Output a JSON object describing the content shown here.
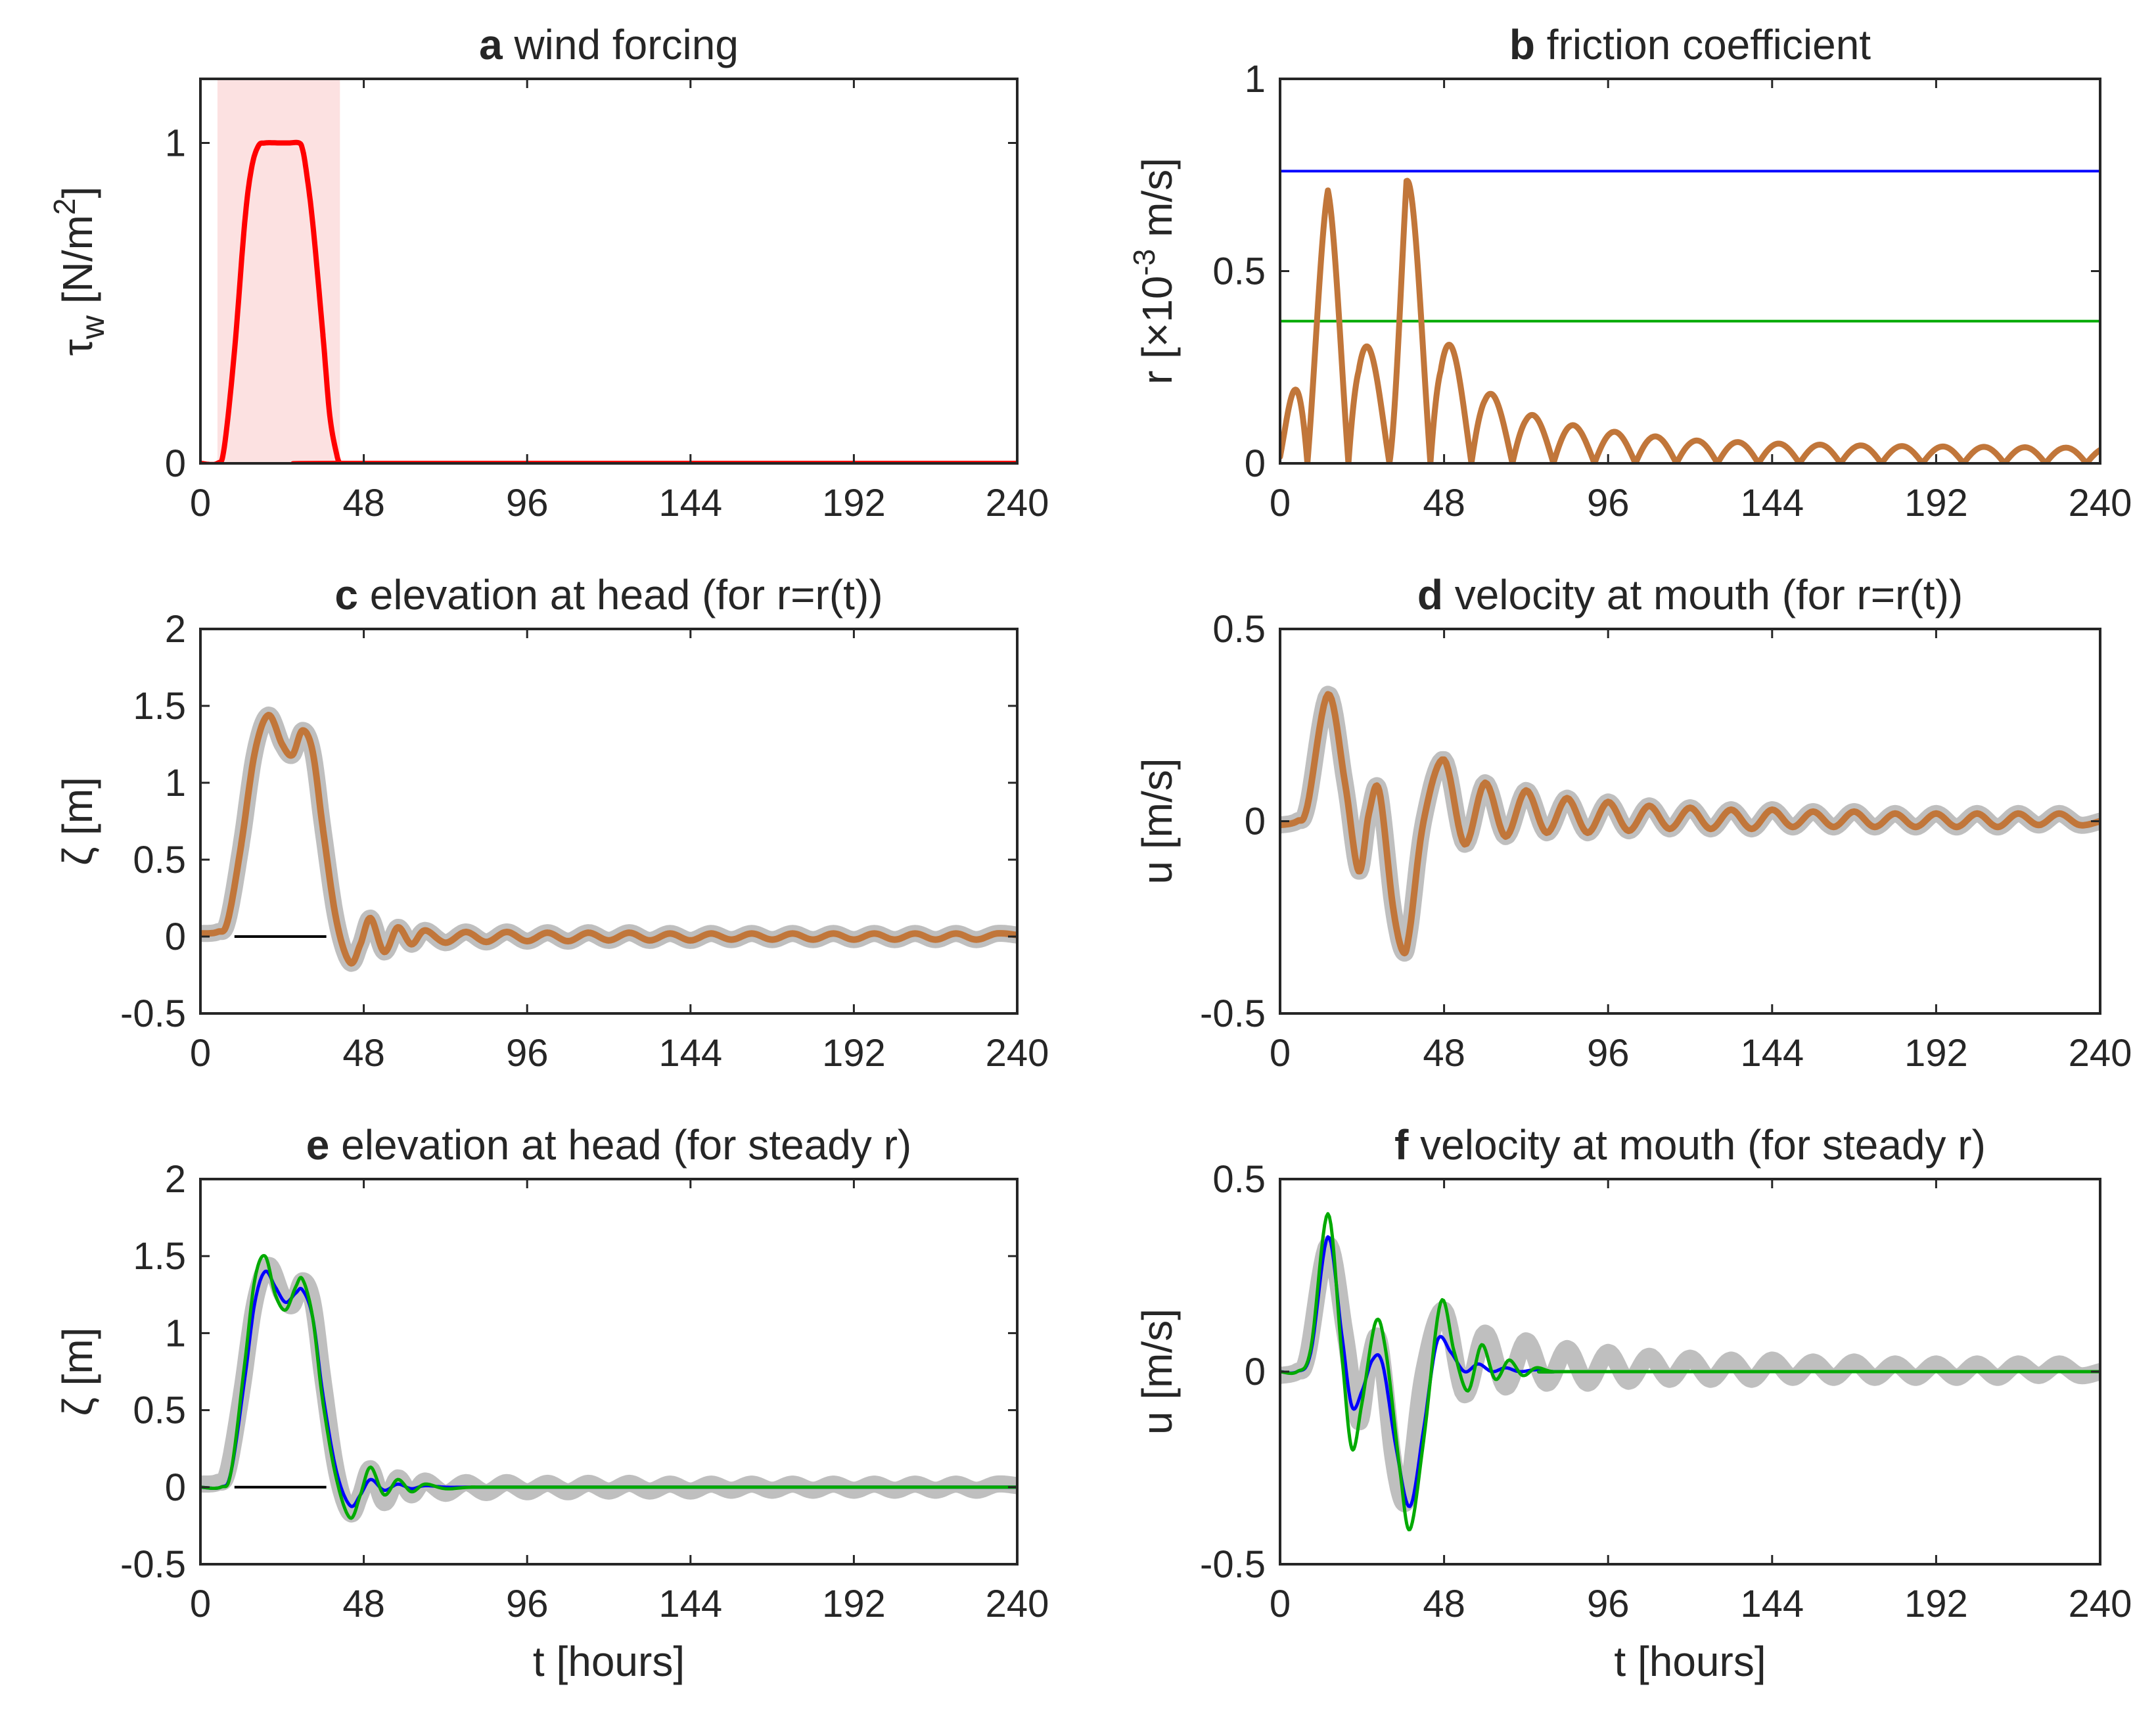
{
  "chart_data": [
    {
      "type": "line",
      "panel_letter": "a",
      "title": "wind forcing",
      "ylabel": "τ_w [N/m^2]",
      "xlabel": "",
      "xlim": [
        0,
        240
      ],
      "ylim": [
        0,
        1.2
      ],
      "xticks": [
        0,
        48,
        96,
        144,
        192,
        240
      ],
      "yticks": [
        0,
        1
      ],
      "shaded_interval": {
        "x": [
          5,
          41
        ],
        "color": "#fce1e1"
      },
      "series": [
        {
          "color": "#ff0000",
          "x": [
            0,
            5,
            7,
            10,
            13,
            15,
            17,
            19,
            23,
            26,
            29,
            30,
            31,
            33,
            36,
            38,
            40,
            41,
            42,
            240
          ],
          "y": [
            0,
            0,
            0.05,
            0.35,
            0.75,
            0.92,
            0.99,
            1.0,
            1.0,
            1.0,
            1.0,
            0.98,
            0.92,
            0.75,
            0.4,
            0.15,
            0.03,
            0,
            0,
            0
          ]
        }
      ]
    },
    {
      "type": "line",
      "panel_letter": "b",
      "title": "friction coefficient",
      "ylabel": "r [×10^-3 m/s]",
      "xlabel": "",
      "xlim": [
        0,
        240
      ],
      "ylim": [
        0,
        1
      ],
      "xticks": [
        0,
        48,
        96,
        144,
        192,
        240
      ],
      "yticks": [
        0,
        0.5,
        1
      ],
      "series": [
        {
          "color": "#0000ff",
          "x": [
            0,
            240
          ],
          "y": [
            0.76,
            0.76
          ]
        },
        {
          "color": "#00aa00",
          "x": [
            0,
            240
          ],
          "y": [
            0.37,
            0.37
          ]
        },
        {
          "color": "#c1763a",
          "type": "rectified_oscillation",
          "period": 12,
          "phase": 2,
          "x_end": 240,
          "peaks": [
            [
              0,
              0.02
            ],
            [
              14,
              0.71
            ],
            [
              23,
              0.34
            ],
            [
              32,
              0.22
            ],
            [
              37,
              0.76
            ],
            [
              47,
              0.34
            ],
            [
              60,
              0.19
            ],
            [
              72,
              0.13
            ],
            [
              90,
              0.09
            ],
            [
              120,
              0.06
            ],
            [
              150,
              0.05
            ],
            [
              180,
              0.045
            ],
            [
              240,
              0.04
            ]
          ]
        }
      ]
    },
    {
      "type": "line",
      "panel_letter": "c",
      "title": "elevation at head (for r=r(t))",
      "ylabel": "ζ [m]",
      "xlabel": "",
      "xlim": [
        0,
        240
      ],
      "ylim": [
        -0.5,
        2
      ],
      "xticks": [
        0,
        48,
        96,
        144,
        192,
        240
      ],
      "yticks": [
        -0.5,
        0,
        0.5,
        1,
        1.5,
        2
      ],
      "reference_segment": {
        "x": [
          10,
          37
        ],
        "y": 0,
        "color": "#000000"
      },
      "series": [
        {
          "name_shown": false,
          "color": "#bfbfbf",
          "role": "reference",
          "x": [
            0,
            5,
            8,
            12,
            16,
            20,
            24,
            27,
            30,
            33,
            36,
            40,
            44,
            47,
            50,
            54,
            58,
            62,
            66,
            72,
            78,
            84,
            90,
            96,
            102,
            108,
            114,
            120,
            126,
            132,
            138,
            144,
            150,
            156,
            162,
            168,
            174,
            180,
            186,
            192,
            198,
            204,
            210,
            216,
            222,
            228,
            234,
            240
          ],
          "y": [
            0.02,
            0.03,
            0.1,
            0.6,
            1.2,
            1.44,
            1.25,
            1.18,
            1.34,
            1.2,
            0.7,
            0.1,
            -0.17,
            -0.05,
            0.12,
            -0.1,
            0.06,
            -0.05,
            0.04,
            -0.04,
            0.03,
            -0.035,
            0.03,
            -0.03,
            0.025,
            -0.03,
            0.025,
            -0.025,
            0.025,
            -0.025,
            0.02,
            -0.025,
            0.02,
            -0.02,
            0.02,
            -0.02,
            0.02,
            -0.02,
            0.02,
            -0.02,
            0.02,
            -0.02,
            0.02,
            -0.02,
            0.02,
            -0.02,
            0.02,
            0.01
          ]
        },
        {
          "name_shown": false,
          "color": "#c1763a",
          "role": "r(t)",
          "x": [
            0,
            5,
            8,
            12,
            16,
            20,
            24,
            27,
            30,
            33,
            36,
            40,
            44,
            47,
            50,
            54,
            58,
            62,
            66,
            72,
            78,
            84,
            90,
            96,
            102,
            108,
            114,
            120,
            126,
            132,
            138,
            144,
            150,
            156,
            162,
            168,
            174,
            180,
            186,
            192,
            198,
            204,
            210,
            216,
            222,
            228,
            234,
            240
          ],
          "y": [
            0.02,
            0.03,
            0.1,
            0.6,
            1.2,
            1.44,
            1.25,
            1.18,
            1.34,
            1.2,
            0.7,
            0.1,
            -0.17,
            -0.05,
            0.12,
            -0.1,
            0.06,
            -0.05,
            0.04,
            -0.04,
            0.03,
            -0.035,
            0.03,
            -0.03,
            0.025,
            -0.03,
            0.025,
            -0.025,
            0.025,
            -0.025,
            0.02,
            -0.025,
            0.02,
            -0.02,
            0.02,
            -0.02,
            0.02,
            -0.02,
            0.02,
            -0.02,
            0.02,
            -0.02,
            0.02,
            -0.02,
            0.02,
            -0.02,
            0.02,
            0.01
          ]
        }
      ]
    },
    {
      "type": "line",
      "panel_letter": "d",
      "title": "velocity at mouth (for r=r(t))",
      "ylabel": "u [m/s]",
      "xlabel": "",
      "xlim": [
        0,
        240
      ],
      "ylim": [
        -0.5,
        0.5
      ],
      "xticks": [
        0,
        48,
        96,
        144,
        192,
        240
      ],
      "yticks": [
        -0.5,
        0,
        0.5
      ],
      "series": [
        {
          "name_shown": false,
          "color": "#bfbfbf",
          "role": "reference",
          "x": [
            0,
            5,
            8,
            14,
            19,
            23,
            26,
            29,
            33,
            36,
            38,
            42,
            48,
            54,
            60,
            66,
            72,
            78,
            84,
            90,
            96,
            102,
            108,
            114,
            120,
            126,
            132,
            138,
            144,
            150,
            156,
            162,
            168,
            174,
            180,
            186,
            192,
            198,
            204,
            210,
            216,
            222,
            228,
            234,
            240
          ],
          "y": [
            -0.01,
            0,
            0.04,
            0.33,
            0.1,
            -0.13,
            0.02,
            0.08,
            -0.22,
            -0.34,
            -0.28,
            0.0,
            0.16,
            -0.06,
            0.1,
            -0.04,
            0.08,
            -0.03,
            0.06,
            -0.03,
            0.05,
            -0.025,
            0.04,
            -0.02,
            0.035,
            -0.02,
            0.03,
            -0.02,
            0.03,
            -0.015,
            0.025,
            -0.015,
            0.025,
            -0.015,
            0.02,
            -0.015,
            0.02,
            -0.015,
            0.02,
            -0.015,
            0.02,
            -0.01,
            0.02,
            -0.01,
            0.0
          ]
        },
        {
          "name_shown": false,
          "color": "#c1763a",
          "role": "r(t)",
          "x": [
            0,
            5,
            8,
            14,
            19,
            23,
            26,
            29,
            33,
            36,
            38,
            42,
            48,
            54,
            60,
            66,
            72,
            78,
            84,
            90,
            96,
            102,
            108,
            114,
            120,
            126,
            132,
            138,
            144,
            150,
            156,
            162,
            168,
            174,
            180,
            186,
            192,
            198,
            204,
            210,
            216,
            222,
            228,
            234,
            240
          ],
          "y": [
            -0.01,
            0,
            0.04,
            0.33,
            0.1,
            -0.13,
            0.02,
            0.08,
            -0.22,
            -0.34,
            -0.28,
            0.0,
            0.16,
            -0.06,
            0.1,
            -0.04,
            0.08,
            -0.03,
            0.06,
            -0.03,
            0.05,
            -0.025,
            0.04,
            -0.02,
            0.035,
            -0.02,
            0.03,
            -0.02,
            0.03,
            -0.015,
            0.025,
            -0.015,
            0.025,
            -0.015,
            0.02,
            -0.015,
            0.02,
            -0.015,
            0.02,
            -0.015,
            0.02,
            -0.01,
            0.02,
            -0.01,
            0.0
          ]
        }
      ]
    },
    {
      "type": "line",
      "panel_letter": "e",
      "title": "elevation at head (for steady r)",
      "ylabel": "ζ [m]",
      "xlabel": "t [hours]",
      "xlim": [
        0,
        240
      ],
      "ylim": [
        -0.5,
        2
      ],
      "xticks": [
        0,
        48,
        96,
        144,
        192,
        240
      ],
      "yticks": [
        -0.5,
        0,
        0.5,
        1,
        1.5,
        2
      ],
      "reference_segment": {
        "x": [
          10,
          37
        ],
        "y": 0,
        "color": "#000000"
      },
      "series": [
        {
          "name_shown": false,
          "color": "#bfbfbf",
          "role": "reference",
          "x": [
            0,
            5,
            8,
            12,
            16,
            20,
            24,
            27,
            30,
            33,
            36,
            40,
            44,
            47,
            50,
            54,
            58,
            62,
            66,
            72,
            78,
            84,
            90,
            96,
            102,
            108,
            114,
            120,
            126,
            132,
            138,
            144,
            150,
            156,
            162,
            168,
            174,
            180,
            186,
            192,
            198,
            204,
            210,
            216,
            222,
            228,
            234,
            240
          ],
          "y": [
            0.02,
            0.03,
            0.1,
            0.6,
            1.2,
            1.44,
            1.25,
            1.18,
            1.34,
            1.2,
            0.7,
            0.1,
            -0.17,
            -0.05,
            0.12,
            -0.1,
            0.06,
            -0.05,
            0.04,
            -0.04,
            0.03,
            -0.035,
            0.03,
            -0.03,
            0.025,
            -0.03,
            0.025,
            -0.025,
            0.025,
            -0.025,
            0.02,
            -0.025,
            0.02,
            -0.02,
            0.02,
            -0.02,
            0.02,
            -0.02,
            0.02,
            -0.02,
            0.02,
            -0.02,
            0.02,
            -0.02,
            0.02,
            -0.02,
            0.02,
            0.01
          ]
        },
        {
          "name_shown": false,
          "color": "#0000ff",
          "role": "steady r (high)",
          "x": [
            0,
            6,
            9,
            13,
            16,
            19,
            22,
            25,
            28,
            30,
            33,
            36,
            40,
            44,
            47,
            50,
            54,
            58,
            62,
            66,
            72,
            80,
            96,
            240
          ],
          "y": [
            0,
            0,
            0.1,
            0.7,
            1.2,
            1.4,
            1.3,
            1.2,
            1.26,
            1.28,
            1.1,
            0.6,
            0.1,
            -0.12,
            -0.05,
            0.05,
            -0.02,
            0.02,
            -0.01,
            0.01,
            0,
            0,
            0,
            0
          ]
        },
        {
          "name_shown": false,
          "color": "#00aa00",
          "role": "steady r (low)",
          "x": [
            0,
            6,
            9,
            13,
            16,
            19,
            22,
            25,
            28,
            30,
            33,
            36,
            40,
            44,
            47,
            50,
            54,
            58,
            62,
            66,
            72,
            80,
            96,
            240
          ],
          "y": [
            0,
            0,
            0.1,
            0.8,
            1.35,
            1.5,
            1.25,
            1.15,
            1.3,
            1.35,
            1.1,
            0.55,
            0.05,
            -0.2,
            -0.05,
            0.13,
            -0.05,
            0.05,
            -0.03,
            0.02,
            -0.01,
            0,
            0,
            0
          ]
        }
      ]
    },
    {
      "type": "line",
      "panel_letter": "f",
      "title": "velocity at mouth (for steady r)",
      "ylabel": "u [m/s]",
      "xlabel": "t [hours]",
      "xlim": [
        0,
        240
      ],
      "ylim": [
        -0.5,
        0.5
      ],
      "xticks": [
        0,
        48,
        96,
        144,
        192,
        240
      ],
      "yticks": [
        -0.5,
        0,
        0.5
      ],
      "series": [
        {
          "name_shown": false,
          "color": "#bfbfbf",
          "role": "reference",
          "x": [
            0,
            5,
            8,
            14,
            19,
            23,
            26,
            29,
            33,
            36,
            38,
            42,
            48,
            54,
            60,
            66,
            72,
            78,
            84,
            90,
            96,
            102,
            108,
            114,
            120,
            126,
            132,
            138,
            144,
            150,
            156,
            162,
            168,
            174,
            180,
            186,
            192,
            198,
            204,
            210,
            216,
            222,
            228,
            234,
            240
          ],
          "y": [
            -0.01,
            0,
            0.04,
            0.33,
            0.1,
            -0.13,
            0.02,
            0.08,
            -0.22,
            -0.34,
            -0.28,
            0.0,
            0.16,
            -0.06,
            0.1,
            -0.04,
            0.08,
            -0.03,
            0.06,
            -0.03,
            0.05,
            -0.025,
            0.04,
            -0.02,
            0.035,
            -0.02,
            0.03,
            -0.02,
            0.03,
            -0.015,
            0.025,
            -0.015,
            0.025,
            -0.015,
            0.02,
            -0.015,
            0.02,
            -0.015,
            0.02,
            -0.015,
            0.02,
            -0.01,
            0.02,
            -0.01,
            0.0
          ]
        },
        {
          "name_shown": false,
          "color": "#0000ff",
          "role": "steady r (high)",
          "x": [
            0,
            5,
            9,
            14,
            18,
            21,
            24,
            27,
            30,
            34,
            38,
            42,
            46,
            50,
            54,
            58,
            62,
            66,
            70,
            75,
            80,
            90,
            240
          ],
          "y": [
            0,
            0,
            0.05,
            0.35,
            0.1,
            -0.09,
            -0.05,
            0.03,
            0.02,
            -0.2,
            -0.35,
            -0.15,
            0.08,
            0.05,
            0.0,
            0.02,
            0.0,
            0.01,
            0.0,
            0.005,
            0,
            0,
            0
          ]
        },
        {
          "name_shown": false,
          "color": "#00aa00",
          "role": "steady r (low)",
          "x": [
            0,
            5,
            9,
            14,
            18,
            21,
            24,
            28,
            31,
            35,
            38,
            42,
            47,
            51,
            55,
            59,
            63,
            67,
            71,
            75,
            80,
            90,
            240
          ],
          "y": [
            0,
            0,
            0.06,
            0.41,
            0.05,
            -0.2,
            -0.08,
            0.13,
            0.05,
            -0.25,
            -0.41,
            -0.18,
            0.18,
            0.05,
            -0.05,
            0.07,
            -0.02,
            0.03,
            -0.01,
            0.01,
            0,
            0,
            0
          ]
        }
      ]
    }
  ]
}
